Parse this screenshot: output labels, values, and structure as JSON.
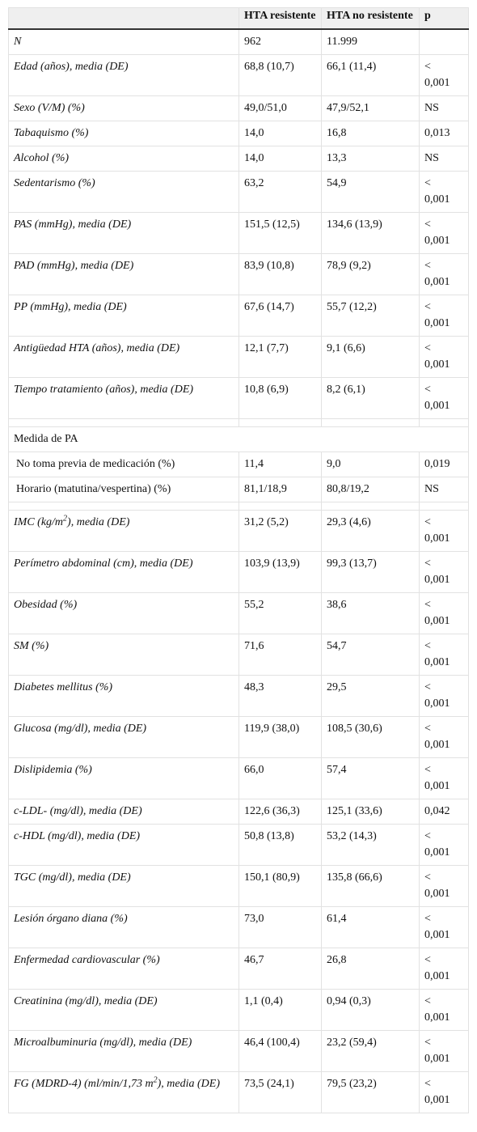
{
  "table": {
    "header": [
      "HTA resistente",
      "HTA no resistente",
      "p"
    ],
    "groups": [
      {
        "rows": [
          {
            "label": [
              "N"
            ],
            "values": [
              "962",
              "11.999"
            ]
          },
          {
            "label": [
              "Edad (años), media (DE)"
            ],
            "values": [
              "68,8 (10,7)",
              "66,1 (11,4)",
              "< 0,001"
            ]
          },
          {
            "label": [
              "Sexo (V/M) (%)"
            ],
            "values": [
              "49,0/51,0",
              "47,9/52,1",
              "NS"
            ]
          },
          {
            "label": [
              "Tabaquismo (%)"
            ],
            "values": [
              "14,0",
              "16,8",
              "0,013"
            ]
          },
          {
            "label": [
              "Alcohol (%)"
            ],
            "values": [
              "14,0",
              "13,3",
              "NS"
            ]
          },
          {
            "label": [
              "Sedentarismo (%)"
            ],
            "values": [
              "63,2",
              "54,9",
              "< 0,001"
            ]
          },
          {
            "label": [
              "PAS (mmHg), media (DE)"
            ],
            "values": [
              "151,5 (12,5)",
              "134,6 (13,9)",
              "< 0,001"
            ]
          },
          {
            "label": [
              "PAD (mmHg), media (DE)"
            ],
            "values": [
              "83,9 (10,8)",
              "78,9 (9,2)",
              "< 0,001"
            ]
          },
          {
            "label": [
              "PP (mmHg), media (DE)"
            ],
            "values": [
              "67,6 (14,7)",
              "55,7 (12,2)",
              "< 0,001"
            ]
          },
          {
            "label": [
              "Antigüedad HTA (años), media (DE)"
            ],
            "values": [
              "12,1 (7,7)",
              "9,1 (6,6)",
              "< 0,001"
            ]
          },
          {
            "label": [
              "Tiempo tratamiento (años), media (DE)"
            ],
            "values": [
              "10,8 (6,9)",
              "8,2 (6,1)",
              "< 0,001"
            ]
          }
        ]
      },
      {
        "title": "Medida de PA",
        "rows": [
          {
            "label": [
              "No toma previa de medicación (%)"
            ],
            "values": [
              "11,4",
              "9,0",
              "0,019"
            ]
          },
          {
            "label": [
              "Horario (matutina/vespertina) (%)"
            ],
            "values": [
              "81,1/18,9",
              "80,8/19,2",
              "NS"
            ]
          }
        ]
      },
      {
        "rows": [
          {
            "label": [
              "IMC (kg/m",
              "2",
              "), media (DE)"
            ],
            "values": [
              "31,2 (5,2)",
              "29,3 (4,6)",
              "< 0,001"
            ]
          },
          {
            "label": [
              "Perímetro abdominal (cm), media (DE)"
            ],
            "values": [
              "103,9 (13,9)",
              "99,3 (13,7)",
              "< 0,001"
            ]
          },
          {
            "label": [
              "Obesidad (%)"
            ],
            "values": [
              "55,2",
              "38,6",
              "< 0,001"
            ]
          },
          {
            "label": [
              "SM (%)"
            ],
            "values": [
              "71,6",
              "54,7",
              "< 0,001"
            ]
          },
          {
            "label": [
              "Diabetes mellitus (%)"
            ],
            "values": [
              "48,3",
              "29,5",
              "< 0,001"
            ]
          },
          {
            "label": [
              "Glucosa (mg/dl), media (DE)"
            ],
            "values": [
              "119,9 (38,0)",
              "108,5 (30,6)",
              "< 0,001"
            ]
          },
          {
            "label": [
              "Dislipidemia (%)"
            ],
            "values": [
              "66,0",
              "57,4",
              "< 0,001"
            ]
          },
          {
            "label": [
              "c-LDL- (mg/dl), media (DE)"
            ],
            "values": [
              "122,6 (36,3)",
              "125,1 (33,6)",
              "0,042"
            ]
          },
          {
            "label": [
              "c-HDL (mg/dl), media (DE)"
            ],
            "values": [
              "50,8 (13,8)",
              "53,2 (14,3)",
              "< 0,001"
            ]
          },
          {
            "label": [
              "TGC (mg/dl), media (DE)"
            ],
            "values": [
              "150,1 (80,9)",
              "135,8 (66,6)",
              "< 0,001"
            ]
          },
          {
            "label": [
              "Lesión órgano diana (%)"
            ],
            "values": [
              "73,0",
              "61,4",
              "< 0,001"
            ]
          },
          {
            "label": [
              "Enfermedad cardiovascular (%)"
            ],
            "values": [
              "46,7",
              "26,8",
              "< 0,001"
            ]
          },
          {
            "label": [
              "Creatinina (mg/dl), media (DE)"
            ],
            "values": [
              "1,1 (0,4)",
              "0,94 (0,3)",
              "< 0,001"
            ]
          },
          {
            "label": [
              "Microalbuminuria (mg/dl), media (DE)"
            ],
            "values": [
              "46,4 (100,4)",
              "23,2 (59,4)",
              "< 0,001"
            ]
          },
          {
            "label": [
              "FG (MDRD-4) (ml/min/1,73 m",
              "2",
              "), media (DE)"
            ],
            "values": [
              "73,5 (24,1)",
              "79,5 (23,2)",
              "< 0,001"
            ]
          }
        ]
      }
    ]
  }
}
